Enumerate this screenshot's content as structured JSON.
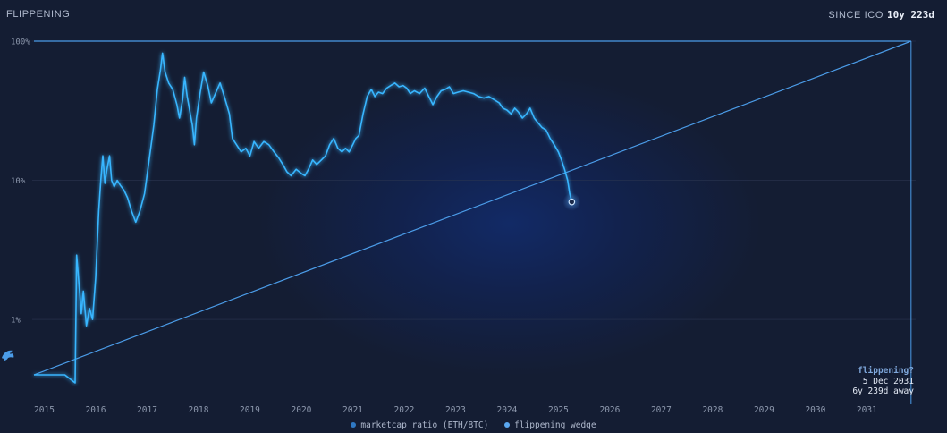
{
  "panel": {
    "title": "FLIPPENING",
    "since_label": "SINCE ICO",
    "since_value": "10y 223d"
  },
  "flippening_info": {
    "question": "flippening?",
    "date": "5 Dec 2031",
    "away": "6y 239d away"
  },
  "legend": {
    "ratio": "marketcap ratio (ETH/BTC)",
    "wedge": "flippening wedge"
  },
  "colors": {
    "line": "#38b6ff",
    "wedge": "#4b9ce8",
    "legend_ratio": "#2f79c4",
    "legend_wedge": "#5aa7f0"
  },
  "chart_data": {
    "type": "line",
    "yscale": "log",
    "ylim": [
      0.0033,
      1.0
    ],
    "y_ticks": [
      {
        "value": 1.0,
        "label": "100%"
      },
      {
        "value": 0.1,
        "label": "10%"
      },
      {
        "value": 0.01,
        "label": "1%"
      }
    ],
    "xlim": [
      2014.8,
      2031.95
    ],
    "x_ticks": [
      "2015",
      "2016",
      "2017",
      "2018",
      "2019",
      "2020",
      "2021",
      "2022",
      "2023",
      "2024",
      "2025",
      "2026",
      "2027",
      "2028",
      "2029",
      "2030",
      "2031"
    ],
    "series": [
      {
        "name": "marketcap ratio (ETH/BTC)",
        "points": [
          [
            2014.8,
            0.004
          ],
          [
            2015.4,
            0.004
          ],
          [
            2015.6,
            0.0035
          ],
          [
            2015.63,
            0.029
          ],
          [
            2015.68,
            0.017
          ],
          [
            2015.72,
            0.011
          ],
          [
            2015.76,
            0.016
          ],
          [
            2015.82,
            0.009
          ],
          [
            2015.88,
            0.012
          ],
          [
            2015.94,
            0.01
          ],
          [
            2016.0,
            0.02
          ],
          [
            2016.06,
            0.06
          ],
          [
            2016.1,
            0.1
          ],
          [
            2016.14,
            0.15
          ],
          [
            2016.18,
            0.095
          ],
          [
            2016.22,
            0.12
          ],
          [
            2016.27,
            0.15
          ],
          [
            2016.31,
            0.1
          ],
          [
            2016.36,
            0.09
          ],
          [
            2016.42,
            0.1
          ],
          [
            2016.48,
            0.092
          ],
          [
            2016.55,
            0.085
          ],
          [
            2016.62,
            0.075
          ],
          [
            2016.7,
            0.06
          ],
          [
            2016.78,
            0.05
          ],
          [
            2016.86,
            0.06
          ],
          [
            2016.95,
            0.08
          ],
          [
            2017.05,
            0.15
          ],
          [
            2017.13,
            0.25
          ],
          [
            2017.2,
            0.45
          ],
          [
            2017.26,
            0.62
          ],
          [
            2017.3,
            0.82
          ],
          [
            2017.35,
            0.6
          ],
          [
            2017.42,
            0.5
          ],
          [
            2017.5,
            0.45
          ],
          [
            2017.58,
            0.35
          ],
          [
            2017.63,
            0.28
          ],
          [
            2017.69,
            0.38
          ],
          [
            2017.73,
            0.55
          ],
          [
            2017.78,
            0.4
          ],
          [
            2017.84,
            0.3
          ],
          [
            2017.88,
            0.25
          ],
          [
            2017.92,
            0.18
          ],
          [
            2017.96,
            0.28
          ],
          [
            2018.03,
            0.42
          ],
          [
            2018.1,
            0.6
          ],
          [
            2018.18,
            0.48
          ],
          [
            2018.25,
            0.36
          ],
          [
            2018.33,
            0.42
          ],
          [
            2018.42,
            0.5
          ],
          [
            2018.52,
            0.38
          ],
          [
            2018.6,
            0.3
          ],
          [
            2018.66,
            0.2
          ],
          [
            2018.74,
            0.18
          ],
          [
            2018.83,
            0.16
          ],
          [
            2018.92,
            0.17
          ],
          [
            2019.0,
            0.15
          ],
          [
            2019.08,
            0.19
          ],
          [
            2019.17,
            0.17
          ],
          [
            2019.27,
            0.19
          ],
          [
            2019.37,
            0.18
          ],
          [
            2019.47,
            0.16
          ],
          [
            2019.56,
            0.145
          ],
          [
            2019.64,
            0.13
          ],
          [
            2019.72,
            0.115
          ],
          [
            2019.8,
            0.108
          ],
          [
            2019.9,
            0.12
          ],
          [
            2020.0,
            0.112
          ],
          [
            2020.07,
            0.108
          ],
          [
            2020.14,
            0.12
          ],
          [
            2020.22,
            0.14
          ],
          [
            2020.3,
            0.13
          ],
          [
            2020.39,
            0.14
          ],
          [
            2020.47,
            0.15
          ],
          [
            2020.55,
            0.18
          ],
          [
            2020.63,
            0.2
          ],
          [
            2020.71,
            0.17
          ],
          [
            2020.79,
            0.16
          ],
          [
            2020.86,
            0.17
          ],
          [
            2020.93,
            0.16
          ],
          [
            2021.0,
            0.18
          ],
          [
            2021.06,
            0.2
          ],
          [
            2021.12,
            0.21
          ],
          [
            2021.2,
            0.3
          ],
          [
            2021.28,
            0.4
          ],
          [
            2021.36,
            0.45
          ],
          [
            2021.43,
            0.4
          ],
          [
            2021.5,
            0.43
          ],
          [
            2021.58,
            0.42
          ],
          [
            2021.66,
            0.46
          ],
          [
            2021.74,
            0.48
          ],
          [
            2021.82,
            0.5
          ],
          [
            2021.9,
            0.47
          ],
          [
            2021.98,
            0.48
          ],
          [
            2022.05,
            0.46
          ],
          [
            2022.12,
            0.42
          ],
          [
            2022.2,
            0.44
          ],
          [
            2022.3,
            0.42
          ],
          [
            2022.4,
            0.46
          ],
          [
            2022.48,
            0.4
          ],
          [
            2022.56,
            0.35
          ],
          [
            2022.64,
            0.4
          ],
          [
            2022.72,
            0.44
          ],
          [
            2022.8,
            0.45
          ],
          [
            2022.88,
            0.47
          ],
          [
            2022.96,
            0.42
          ],
          [
            2023.05,
            0.43
          ],
          [
            2023.15,
            0.44
          ],
          [
            2023.25,
            0.43
          ],
          [
            2023.35,
            0.42
          ],
          [
            2023.45,
            0.4
          ],
          [
            2023.55,
            0.39
          ],
          [
            2023.65,
            0.4
          ],
          [
            2023.75,
            0.38
          ],
          [
            2023.85,
            0.36
          ],
          [
            2023.92,
            0.33
          ],
          [
            2024.0,
            0.32
          ],
          [
            2024.08,
            0.3
          ],
          [
            2024.15,
            0.33
          ],
          [
            2024.22,
            0.31
          ],
          [
            2024.3,
            0.28
          ],
          [
            2024.38,
            0.3
          ],
          [
            2024.45,
            0.33
          ],
          [
            2024.53,
            0.28
          ],
          [
            2024.6,
            0.26
          ],
          [
            2024.68,
            0.24
          ],
          [
            2024.76,
            0.23
          ],
          [
            2024.84,
            0.2
          ],
          [
            2024.92,
            0.18
          ],
          [
            2025.0,
            0.16
          ],
          [
            2025.06,
            0.14
          ],
          [
            2025.12,
            0.12
          ],
          [
            2025.18,
            0.1
          ],
          [
            2025.22,
            0.08
          ],
          [
            2025.26,
            0.07
          ]
        ]
      }
    ],
    "wedge": {
      "name": "flippening wedge",
      "from": [
        2014.8,
        0.004
      ],
      "to": [
        2031.86,
        1.0
      ],
      "top": 1.0,
      "end": [
        2031.86,
        1.0
      ],
      "current_point": [
        2025.26,
        0.07
      ]
    }
  }
}
